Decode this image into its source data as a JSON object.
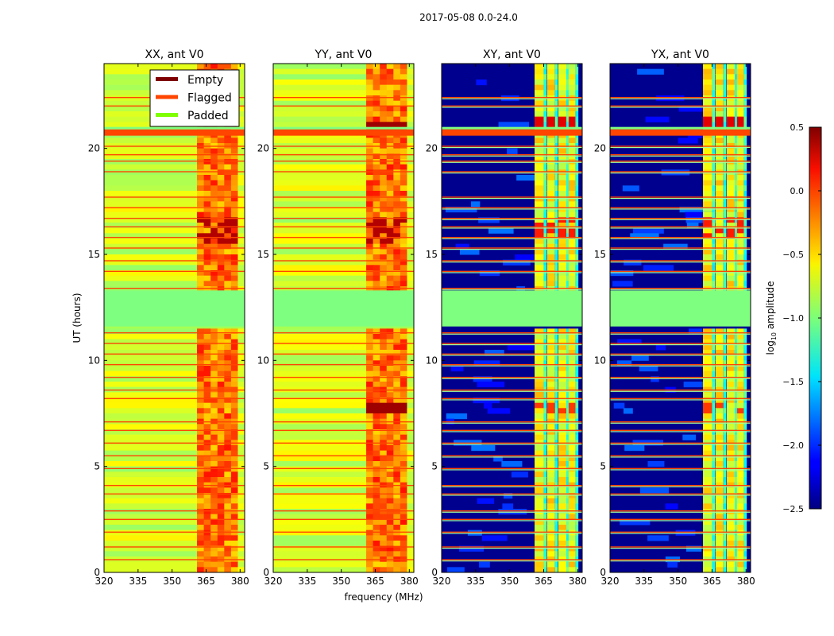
{
  "chart_data": {
    "type": "heatmap",
    "suptitle": "2017-05-08 0.0-24.0",
    "xlabel": "frequency (MHz)",
    "ylabel": "UT (hours)",
    "xlim": [
      320,
      382
    ],
    "ylim": [
      0,
      24
    ],
    "xticks": [
      320,
      335,
      350,
      365,
      380
    ],
    "yticks": [
      0,
      5,
      10,
      15,
      20
    ],
    "panels": [
      {
        "title": "XX, ant V0",
        "pol": "XX",
        "style": "parallel"
      },
      {
        "title": "YY, ant V0",
        "pol": "YY",
        "style": "parallel"
      },
      {
        "title": "XY, ant V0",
        "pol": "XY",
        "style": "cross"
      },
      {
        "title": "YX, ant V0",
        "pol": "YX",
        "style": "cross"
      }
    ],
    "legend": {
      "location": "top-right of first panel",
      "entries": [
        {
          "label": "Empty",
          "color": "#7f0000"
        },
        {
          "label": "Flagged",
          "color": "#ff4500"
        },
        {
          "label": "Padded",
          "color": "#7fff00"
        }
      ]
    },
    "colorbar": {
      "label": "log",
      "label_sub": "10",
      "label_tail": " amplitude",
      "range": [
        -2.5,
        0.5
      ],
      "ticks": [
        "0.5",
        "0.0",
        "−0.5",
        "−1.0",
        "−1.5",
        "−2.0",
        "−2.5"
      ],
      "tick_values": [
        0.5,
        0.0,
        -0.5,
        -1.0,
        -1.5,
        -2.0,
        -2.5
      ],
      "colormap": "jet"
    },
    "padded_ut_range": [
      11.6,
      13.3
    ],
    "flagged_ut": [
      0.6,
      1.2,
      1.9,
      2.5,
      2.9,
      3.7,
      4.1,
      4.9,
      5.5,
      6.1,
      6.7,
      7.1,
      8.2,
      8.6,
      9.2,
      9.8,
      10.3,
      10.8,
      11.3,
      13.4,
      14.2,
      14.7,
      15.3,
      15.8,
      16.3,
      16.7,
      17.2,
      17.7,
      18.9,
      19.4,
      19.7,
      20.1,
      22.0,
      22.4
    ],
    "flagged_ut_band": [
      20.6,
      20.9
    ],
    "bright_freq_range_mhz": [
      361,
      379
    ]
  }
}
